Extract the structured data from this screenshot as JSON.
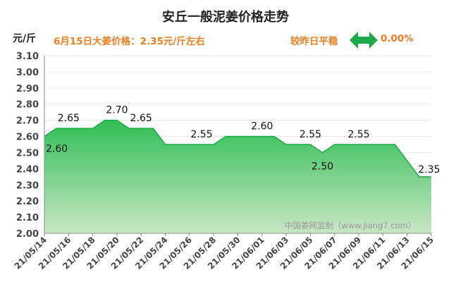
{
  "header": {
    "title": "安丘一般泥姜价格走势",
    "unit": "元/斤",
    "headline": "6月15日大姜价格：2.35元/斤左右",
    "compare_label": "较昨日平稳",
    "change": "0.00%"
  },
  "watermark": "中国姜网监制（www.jiang7.com）",
  "colors": {
    "area_top": "#2fbf55",
    "area_bottom": "#c8e6c4",
    "headline": "#ef7e22",
    "arrow": "#1daa4b"
  },
  "chart_data": {
    "type": "area",
    "title": "安丘一般泥姜价格走势",
    "ylabel": "元/斤",
    "ylim": [
      2.0,
      3.1
    ],
    "yticks": [
      "2.00",
      "2.10",
      "2.20",
      "2.30",
      "2.40",
      "2.50",
      "2.60",
      "2.70",
      "2.80",
      "2.90",
      "3.00",
      "3.10"
    ],
    "xtick_labels": [
      "21/05/14",
      "21/05/16",
      "21/05/18",
      "21/05/20",
      "21/05/22",
      "21/05/24",
      "21/05/26",
      "21/05/28",
      "21/05/30",
      "21/06/01",
      "21/06/03",
      "21/06/05",
      "21/06/07",
      "21/06/09",
      "21/06/11",
      "21/06/13",
      "21/06/15"
    ],
    "x": [
      "05/14",
      "05/15",
      "05/16",
      "05/17",
      "05/18",
      "05/19",
      "05/20",
      "05/21",
      "05/22",
      "05/23",
      "05/24",
      "05/25",
      "05/26",
      "05/27",
      "05/28",
      "05/29",
      "05/30",
      "05/31",
      "06/01",
      "06/02",
      "06/03",
      "06/04",
      "06/05",
      "06/06",
      "06/07",
      "06/08",
      "06/09",
      "06/10",
      "06/11",
      "06/12",
      "06/13",
      "06/14",
      "06/15"
    ],
    "values": [
      2.6,
      2.65,
      2.65,
      2.65,
      2.65,
      2.7,
      2.7,
      2.65,
      2.65,
      2.65,
      2.55,
      2.55,
      2.55,
      2.55,
      2.55,
      2.6,
      2.6,
      2.6,
      2.6,
      2.6,
      2.55,
      2.55,
      2.55,
      2.5,
      2.55,
      2.55,
      2.55,
      2.55,
      2.55,
      2.55,
      2.45,
      2.35,
      2.35
    ],
    "data_labels": [
      {
        "index": 0,
        "text": "2.60"
      },
      {
        "index": 2,
        "text": "2.65"
      },
      {
        "index": 6,
        "text": "2.70"
      },
      {
        "index": 8,
        "text": "2.65"
      },
      {
        "index": 13,
        "text": "2.55"
      },
      {
        "index": 18,
        "text": "2.60"
      },
      {
        "index": 22,
        "text": "2.55"
      },
      {
        "index": 23,
        "text": "2.50"
      },
      {
        "index": 26,
        "text": "2.55"
      },
      {
        "index": 32,
        "text": "2.35"
      }
    ]
  }
}
